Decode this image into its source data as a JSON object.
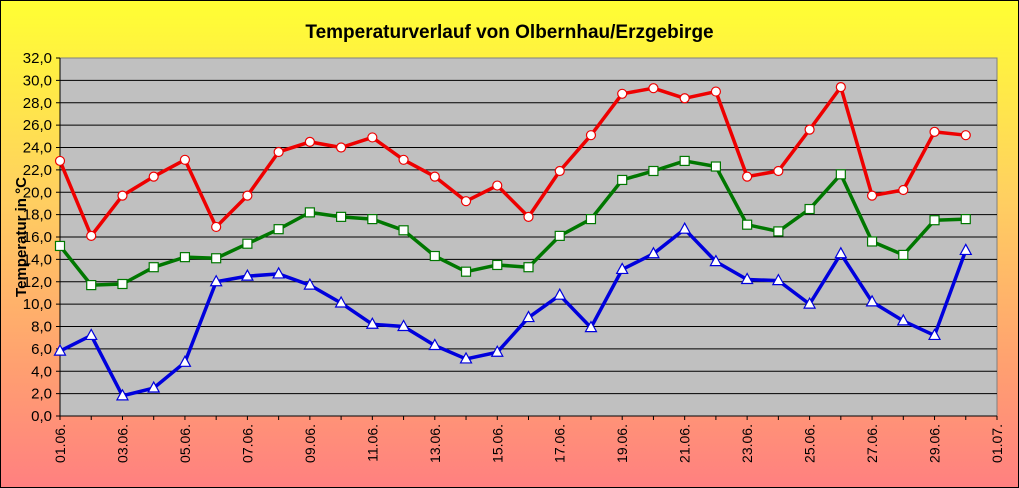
{
  "chart_data": {
    "type": "line",
    "title": "Temperaturverlauf von Olbernhau/Erzgebirge",
    "ylabel": "Temperatur in °C",
    "xlabel": "",
    "ylim": [
      0,
      32
    ],
    "ytick_step": 2,
    "ytick_labels": [
      "0,0",
      "2,0",
      "4,0",
      "6,0",
      "8,0",
      "10,0",
      "12,0",
      "14,0",
      "16,0",
      "18,0",
      "20,0",
      "22,0",
      "24,0",
      "26,0",
      "28,0",
      "30,0",
      "32,0"
    ],
    "xtick_labels": [
      "01.06.",
      "03.06.",
      "05.06.",
      "07.06.",
      "09.06.",
      "11.06.",
      "13.06.",
      "15.06.",
      "17.06.",
      "19.06.",
      "21.06.",
      "23.06.",
      "25.06.",
      "27.06.",
      "29.06.",
      "01.07."
    ],
    "grid": true,
    "background": "#c0c0c0",
    "series": [
      {
        "color": "#ee0000",
        "marker": "circle",
        "values": [
          22.8,
          16.1,
          19.7,
          21.4,
          22.9,
          16.9,
          19.7,
          23.6,
          24.5,
          24.0,
          24.9,
          22.9,
          21.4,
          19.2,
          20.6,
          17.8,
          21.9,
          25.1,
          28.8,
          29.3,
          28.4,
          29.0,
          21.4,
          21.9,
          25.6,
          29.4,
          19.7,
          20.2,
          25.4,
          25.1
        ]
      },
      {
        "color": "#007700",
        "marker": "square",
        "values": [
          15.2,
          11.7,
          11.8,
          13.3,
          14.2,
          14.1,
          15.4,
          16.7,
          18.2,
          17.8,
          17.6,
          16.6,
          14.3,
          12.9,
          13.5,
          13.3,
          16.1,
          17.6,
          21.1,
          21.9,
          22.8,
          22.3,
          17.1,
          16.5,
          18.5,
          21.6,
          15.6,
          14.4,
          17.5,
          17.6
        ]
      },
      {
        "color": "#0000dd",
        "marker": "triangle",
        "values": [
          5.8,
          7.2,
          1.8,
          2.5,
          4.8,
          12.0,
          12.5,
          12.7,
          11.7,
          10.1,
          8.2,
          8.0,
          6.3,
          5.1,
          5.7,
          8.8,
          10.8,
          7.9,
          13.1,
          14.5,
          16.7,
          13.8,
          12.2,
          12.1,
          10.0,
          14.5,
          10.2,
          8.5,
          7.2,
          14.8
        ]
      }
    ]
  }
}
